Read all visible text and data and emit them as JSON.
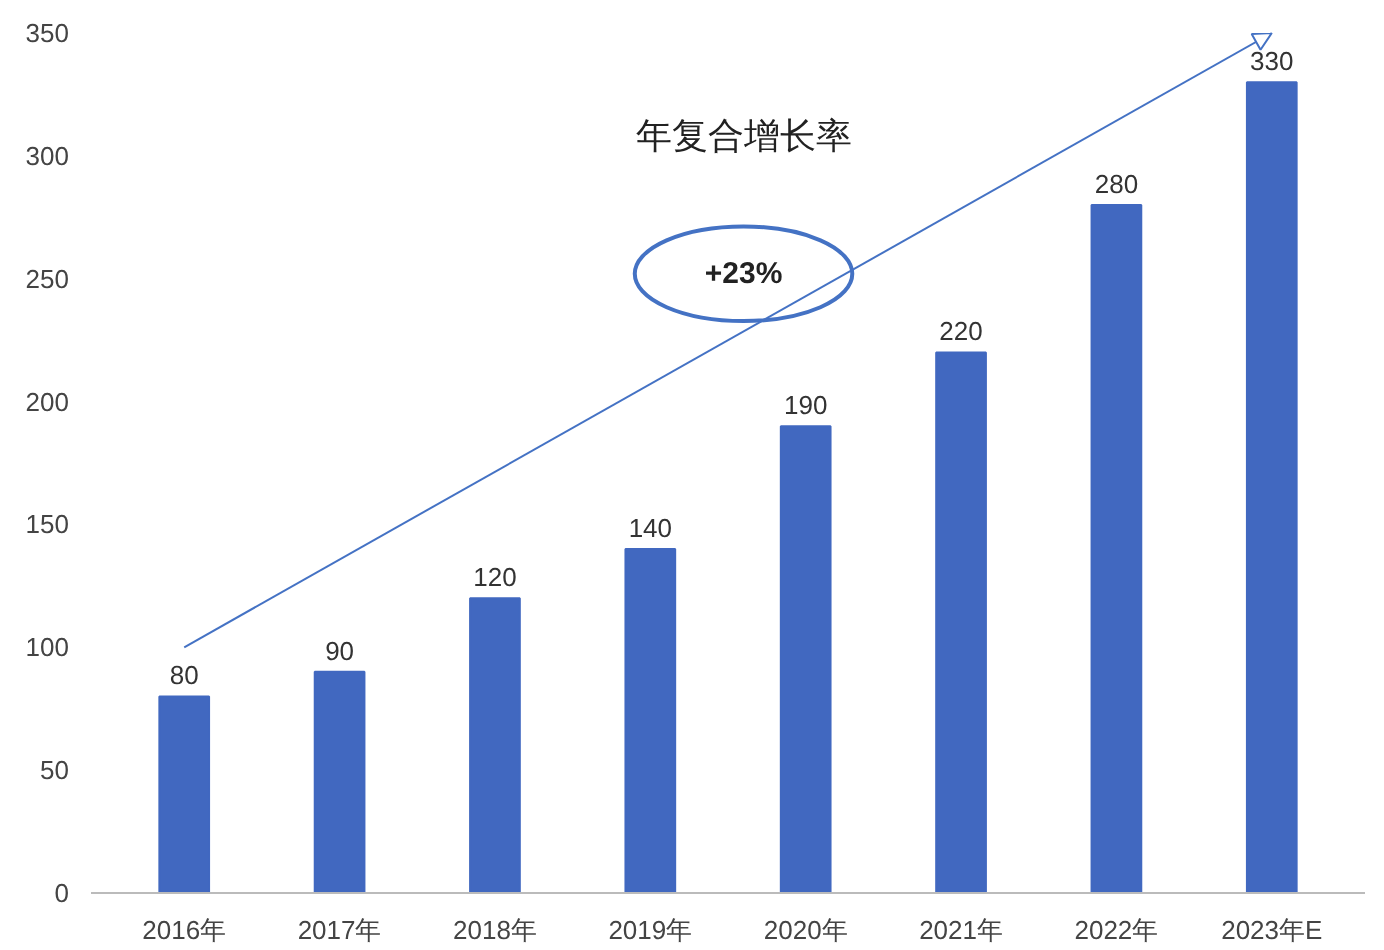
{
  "chart_data": {
    "type": "bar",
    "categories": [
      "2016年",
      "2017年",
      "2018年",
      "2019年",
      "2020年",
      "2021年",
      "2022年",
      "2023年E"
    ],
    "values": [
      80,
      90,
      120,
      140,
      190,
      220,
      280,
      330
    ],
    "color": "#4168c0",
    "ylim": [
      0,
      350
    ],
    "yticks": [
      0,
      50,
      100,
      150,
      200,
      250,
      300,
      350
    ],
    "grid": false,
    "data_labels": true,
    "annotations": [
      "年复合增长率",
      "+23%"
    ]
  }
}
